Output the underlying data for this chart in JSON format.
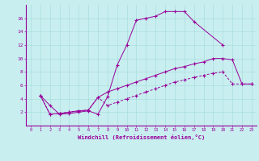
{
  "xlabel": "Windchill (Refroidissement éolien,°C)",
  "bg_color": "#c8eef0",
  "grid_color": "#aadddd",
  "line_color": "#990099",
  "xlim": [
    -0.5,
    23.5
  ],
  "ylim": [
    0,
    18
  ],
  "xticks": [
    0,
    1,
    2,
    3,
    4,
    5,
    6,
    7,
    8,
    9,
    10,
    11,
    12,
    13,
    14,
    15,
    16,
    17,
    18,
    19,
    20,
    21,
    22,
    23
  ],
  "yticks": [
    2,
    4,
    6,
    8,
    10,
    12,
    14,
    16
  ],
  "curve1_x": [
    1,
    2,
    3,
    4,
    5,
    6,
    7,
    8,
    9,
    10,
    11,
    12,
    13,
    14,
    15,
    16,
    17,
    20
  ],
  "curve1_y": [
    4.5,
    3.0,
    1.7,
    1.8,
    2.0,
    2.2,
    1.7,
    4.3,
    9.0,
    12.0,
    15.7,
    16.0,
    16.3,
    17.0,
    17.0,
    17.0,
    15.5,
    12.0
  ],
  "curve2_x": [
    1,
    2,
    3,
    4,
    5,
    6,
    7,
    8,
    9,
    10,
    11,
    12,
    13,
    14,
    15,
    16,
    17,
    18,
    19,
    20,
    21,
    22,
    23
  ],
  "curve2_y": [
    4.5,
    1.7,
    1.8,
    2.0,
    2.2,
    2.3,
    4.2,
    5.0,
    5.5,
    6.0,
    6.5,
    7.0,
    7.5,
    8.0,
    8.5,
    8.8,
    9.2,
    9.5,
    10.0,
    10.0,
    9.8,
    6.2,
    6.2
  ],
  "curve3_x": [
    1,
    2,
    3,
    4,
    5,
    6,
    7,
    8,
    9,
    10,
    11,
    12,
    13,
    14,
    15,
    16,
    17,
    18,
    19,
    20,
    21,
    22,
    23
  ],
  "curve3_y": [
    4.5,
    1.7,
    1.8,
    2.0,
    2.2,
    2.3,
    4.2,
    3.0,
    3.5,
    4.0,
    4.5,
    5.0,
    5.5,
    6.0,
    6.5,
    6.8,
    7.2,
    7.5,
    7.8,
    8.0,
    6.2,
    6.2,
    6.2
  ]
}
